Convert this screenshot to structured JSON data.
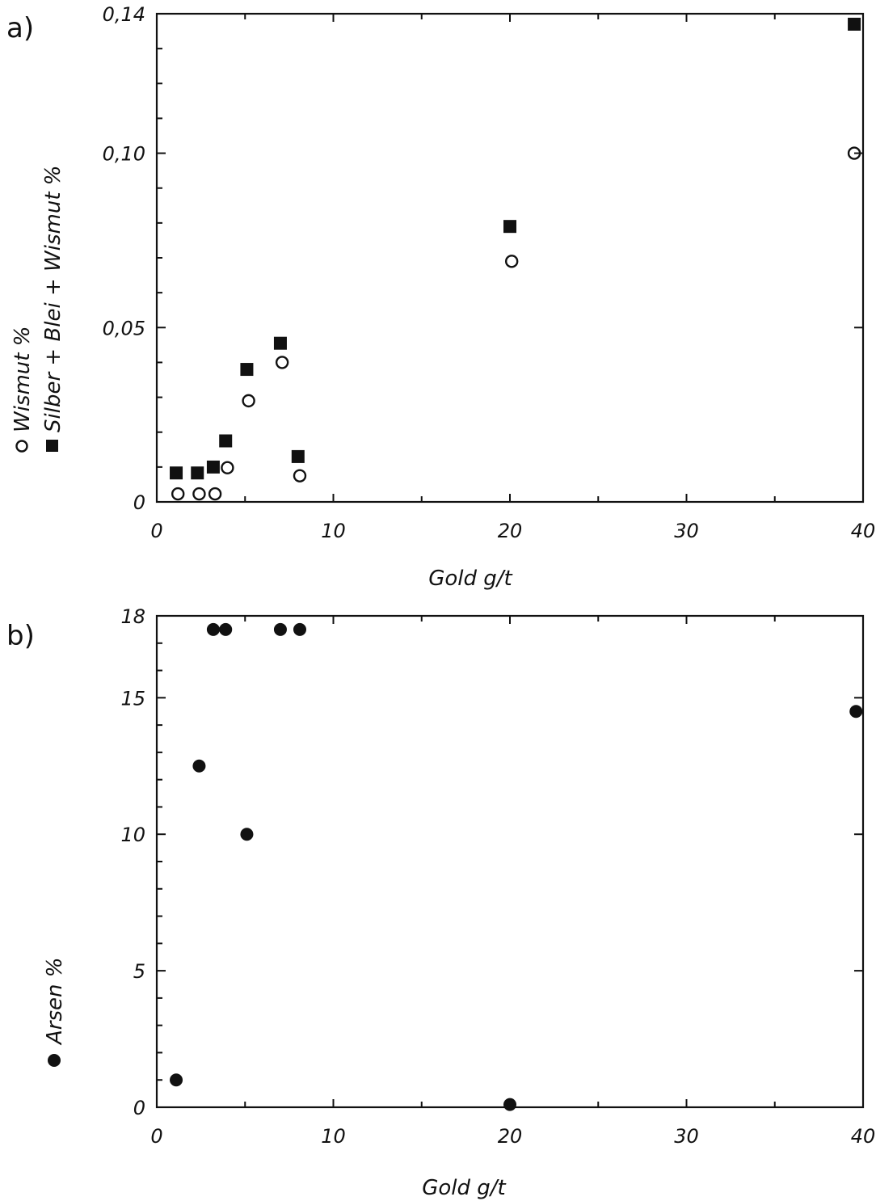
{
  "chart_data": [
    {
      "panel": "a)",
      "type": "scatter",
      "xlabel": "Gold g/t",
      "xlim": [
        0,
        40
      ],
      "ylim": [
        0,
        0.14
      ],
      "x_ticks": [
        0,
        10,
        20,
        30,
        40
      ],
      "x_tick_labels": [
        "0",
        "10",
        "20",
        "30",
        "40"
      ],
      "y_ticks": [
        0,
        0.05,
        0.1,
        0.14
      ],
      "y_tick_labels": [
        "0",
        "0,05",
        "0,10",
        "0,14"
      ],
      "grid": false,
      "legend_placement": "left, rotated along y-axis",
      "series": [
        {
          "name": "Wismut %",
          "marker": "open-circle",
          "x": [
            1.2,
            2.4,
            3.3,
            4.0,
            5.2,
            7.1,
            8.1,
            20.1,
            39.5
          ],
          "y": [
            0.0023,
            0.0023,
            0.0023,
            0.0098,
            0.029,
            0.04,
            0.0075,
            0.069,
            0.1
          ]
        },
        {
          "name": "Silber + Blei + Wismut %",
          "marker": "filled-square",
          "x": [
            1.1,
            2.3,
            3.2,
            3.9,
            5.1,
            7.0,
            8.0,
            20.0,
            39.5
          ],
          "y": [
            0.0083,
            0.0083,
            0.01,
            0.0175,
            0.038,
            0.0455,
            0.013,
            0.079,
            0.137
          ]
        }
      ]
    },
    {
      "panel": "b)",
      "type": "scatter",
      "xlabel": "Gold g/t",
      "xlim": [
        0,
        40
      ],
      "ylim": [
        0,
        18
      ],
      "x_ticks": [
        0,
        10,
        20,
        30,
        40
      ],
      "x_tick_labels": [
        "0",
        "10",
        "20",
        "30",
        "40"
      ],
      "y_ticks": [
        0,
        5,
        10,
        15,
        18
      ],
      "y_tick_labels": [
        "0",
        "5",
        "10",
        "15",
        "18"
      ],
      "grid": false,
      "legend_placement": "left, rotated along y-axis",
      "series": [
        {
          "name": "Arsen %",
          "marker": "filled-circle",
          "x": [
            1.1,
            2.4,
            3.2,
            3.9,
            5.1,
            7.0,
            8.1,
            20.0,
            39.6
          ],
          "y": [
            1.0,
            12.5,
            17.5,
            17.5,
            10.0,
            17.5,
            17.5,
            0.1,
            14.5
          ]
        }
      ]
    }
  ]
}
